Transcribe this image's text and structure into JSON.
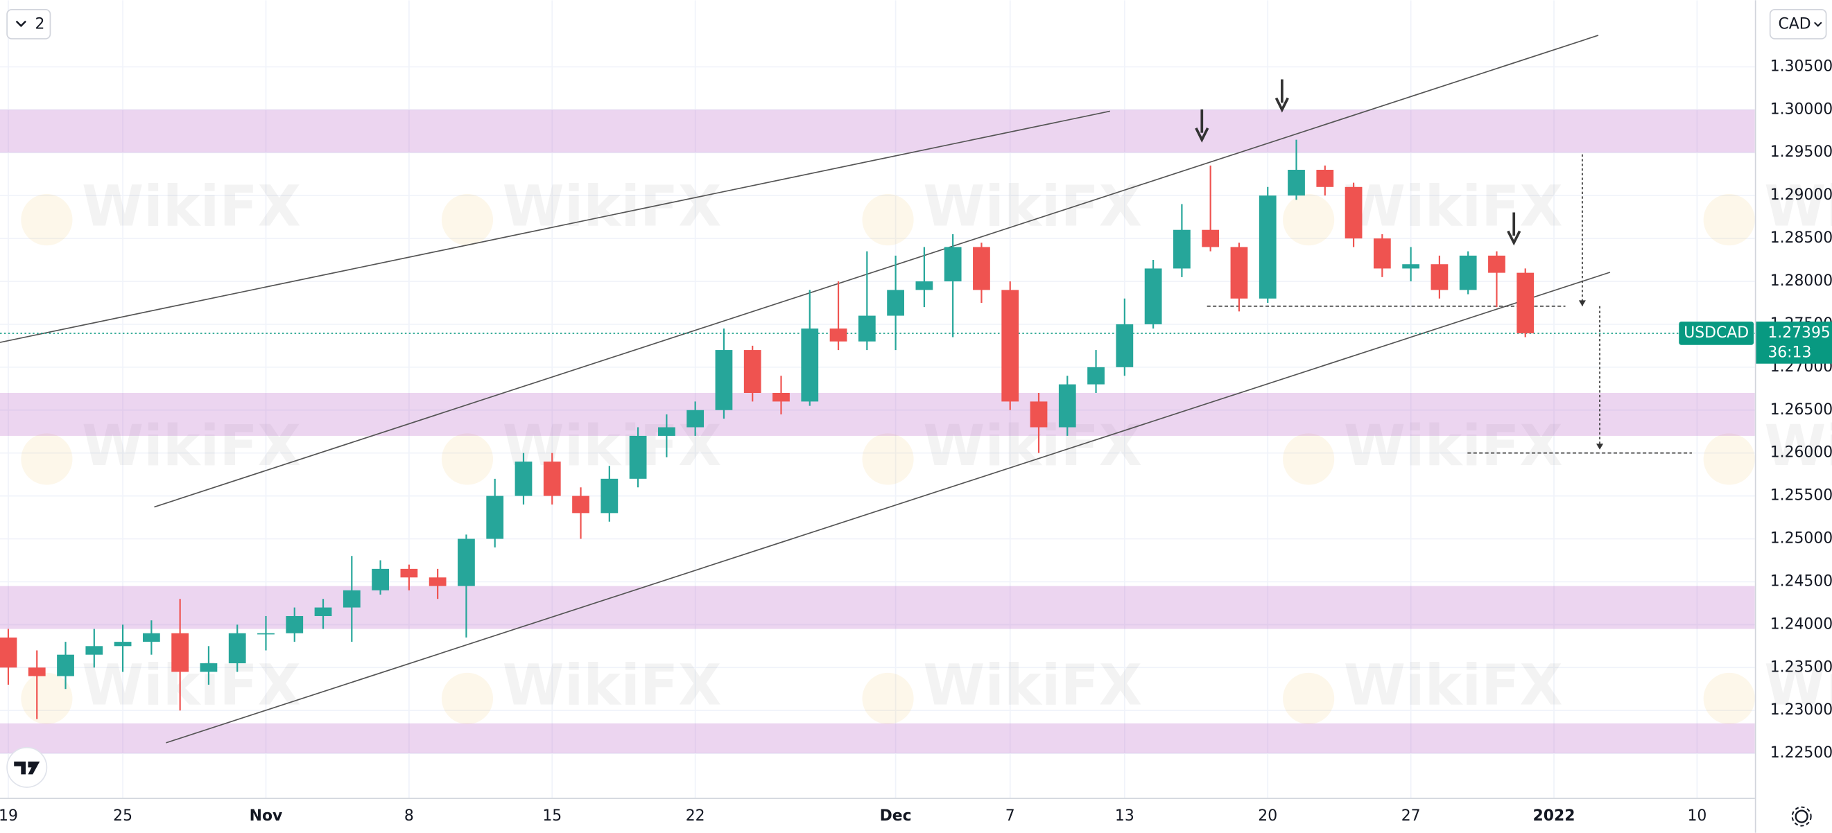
{
  "chart_data": {
    "type": "candlestick",
    "symbol": "USDCAD",
    "toolbar": {
      "collapse_label": "2",
      "currency": "CAD"
    },
    "watermark": "WikiFX",
    "up_color": "#26a69a",
    "down_color": "#ef5350",
    "x": [
      0,
      1,
      2,
      3,
      4,
      5,
      6,
      7,
      8,
      9,
      10,
      11,
      12,
      13,
      14,
      15,
      16,
      17,
      18,
      19,
      20,
      21,
      22,
      23,
      24,
      25,
      26,
      27,
      28,
      29,
      30,
      31,
      32,
      33,
      34,
      35,
      36,
      37,
      38,
      39,
      40,
      41,
      42,
      43,
      44,
      45,
      46,
      47,
      48,
      49,
      50,
      51,
      52,
      53
    ],
    "open": [
      1.2385,
      1.235,
      1.234,
      1.2365,
      1.2375,
      1.238,
      1.239,
      1.2345,
      1.2355,
      1.239,
      1.239,
      1.241,
      1.242,
      1.244,
      1.2465,
      1.2455,
      1.2445,
      1.25,
      1.255,
      1.259,
      1.255,
      1.253,
      1.257,
      1.262,
      1.263,
      1.265,
      1.272,
      1.267,
      1.266,
      1.2745,
      1.273,
      1.276,
      1.279,
      1.28,
      1.284,
      1.279,
      1.266,
      1.263,
      1.268,
      1.27,
      1.275,
      1.2815,
      1.286,
      1.284,
      1.278,
      1.29,
      1.293,
      1.291,
      1.285,
      1.2815,
      1.282,
      1.279,
      1.283,
      1.281
    ],
    "high": [
      1.2395,
      1.237,
      1.238,
      1.2395,
      1.24,
      1.2405,
      1.243,
      1.2375,
      1.24,
      1.241,
      1.242,
      1.243,
      1.248,
      1.2475,
      1.247,
      1.2465,
      1.2505,
      1.257,
      1.26,
      1.26,
      1.256,
      1.2585,
      1.263,
      1.2645,
      1.266,
      1.2745,
      1.2725,
      1.269,
      1.279,
      1.28,
      1.2835,
      1.283,
      1.284,
      1.2855,
      1.2845,
      1.28,
      1.267,
      1.269,
      1.272,
      1.278,
      1.2825,
      1.289,
      1.2935,
      1.2845,
      1.291,
      1.2965,
      1.2935,
      1.2915,
      1.2855,
      1.284,
      1.283,
      1.2835,
      1.2835,
      1.2815
    ],
    "low": [
      1.233,
      1.229,
      1.2325,
      1.235,
      1.2345,
      1.2365,
      1.23,
      1.233,
      1.2345,
      1.237,
      1.238,
      1.2395,
      1.238,
      1.2435,
      1.244,
      1.243,
      1.2385,
      1.249,
      1.254,
      1.254,
      1.25,
      1.252,
      1.256,
      1.2595,
      1.262,
      1.264,
      1.266,
      1.2645,
      1.2655,
      1.272,
      1.272,
      1.272,
      1.277,
      1.2735,
      1.2775,
      1.265,
      1.26,
      1.262,
      1.267,
      1.269,
      1.2745,
      1.2805,
      1.2835,
      1.2765,
      1.2775,
      1.2895,
      1.29,
      1.284,
      1.2805,
      1.28,
      1.278,
      1.2785,
      1.277,
      1.2735
    ],
    "close": [
      1.235,
      1.234,
      1.2365,
      1.2375,
      1.238,
      1.239,
      1.2345,
      1.2355,
      1.239,
      1.239,
      1.241,
      1.242,
      1.244,
      1.2465,
      1.2455,
      1.2445,
      1.25,
      1.255,
      1.259,
      1.255,
      1.253,
      1.257,
      1.262,
      1.263,
      1.265,
      1.272,
      1.267,
      1.266,
      1.2745,
      1.273,
      1.276,
      1.279,
      1.28,
      1.284,
      1.279,
      1.266,
      1.263,
      1.268,
      1.27,
      1.275,
      1.2815,
      1.286,
      1.284,
      1.278,
      1.29,
      1.293,
      1.291,
      1.285,
      1.2815,
      1.282,
      1.279,
      1.283,
      1.281,
      1.27395
    ],
    "xlim": [
      -0.29,
      61.02
    ],
    "xticks": [
      {
        "value": 0,
        "label": "19"
      },
      {
        "value": 4,
        "label": "25"
      },
      {
        "value": 9,
        "label": "Nov"
      },
      {
        "value": 14,
        "label": "8"
      },
      {
        "value": 19,
        "label": "15"
      },
      {
        "value": 24,
        "label": "22"
      },
      {
        "value": 31,
        "label": "Dec"
      },
      {
        "value": 35,
        "label": "7"
      },
      {
        "value": 39,
        "label": "13"
      },
      {
        "value": 44,
        "label": "20"
      },
      {
        "value": 49,
        "label": "27"
      },
      {
        "value": 54,
        "label": "2022"
      },
      {
        "value": 59,
        "label": "10"
      }
    ],
    "ylim": [
      1.21983,
      1.31276
    ],
    "yticks": [
      {
        "value": 1.305,
        "label": "1.30500"
      },
      {
        "value": 1.3,
        "label": "1.30000"
      },
      {
        "value": 1.295,
        "label": "1.29500"
      },
      {
        "value": 1.29,
        "label": "1.29000"
      },
      {
        "value": 1.285,
        "label": "1.28500"
      },
      {
        "value": 1.28,
        "label": "1.28000"
      },
      {
        "value": 1.275,
        "label": "1.27500"
      },
      {
        "value": 1.27,
        "label": "1.27000"
      },
      {
        "value": 1.265,
        "label": "1.26500"
      },
      {
        "value": 1.26,
        "label": "1.26000"
      },
      {
        "value": 1.255,
        "label": "1.25500"
      },
      {
        "value": 1.25,
        "label": "1.25000"
      },
      {
        "value": 1.245,
        "label": "1.24500"
      },
      {
        "value": 1.24,
        "label": "1.24000"
      },
      {
        "value": 1.235,
        "label": "1.23500"
      },
      {
        "value": 1.23,
        "label": "1.23000"
      },
      {
        "value": 1.225,
        "label": "1.22500"
      }
    ],
    "grid": true,
    "last_price": {
      "value": 1.27395,
      "label": "1.27395"
    },
    "countdown": "36:13",
    "price_line_color": "#089981",
    "zones": [
      {
        "low": 1.295,
        "high": 1.3
      },
      {
        "low": 1.262,
        "high": 1.267
      },
      {
        "low": 1.2395,
        "high": 1.2445
      },
      {
        "low": 1.225,
        "high": 1.2285
      }
    ],
    "zone_color": "rgba(186,104,200,0.28)",
    "trendlines": [
      {
        "x": [
          5.1,
          55.55
        ],
        "y": [
          1.25371,
          1.30867
        ]
      },
      {
        "x": [
          5.51,
          55.96
        ],
        "y": [
          1.22623,
          1.28106
        ]
      },
      {
        "x": [
          -0.29,
          38.49
        ],
        "y": [
          1.27289,
          1.29983
        ]
      }
    ],
    "levels": [
      {
        "x": [
          41.88,
          54.4
        ],
        "y": 1.27711
      },
      {
        "x": [
          50.98,
          58.82
        ],
        "y": 1.26
      }
    ],
    "projections": [
      {
        "x": 54.99,
        "y": [
          1.2948,
          1.27711
        ]
      },
      {
        "x": 55.6,
        "y": [
          1.27711,
          1.2604
        ]
      }
    ],
    "arrows": [
      {
        "x": 41.7,
        "y": 1.2965
      },
      {
        "x": 44.5,
        "y": 1.3
      },
      {
        "x": 52.6,
        "y": 1.2845
      }
    ]
  }
}
